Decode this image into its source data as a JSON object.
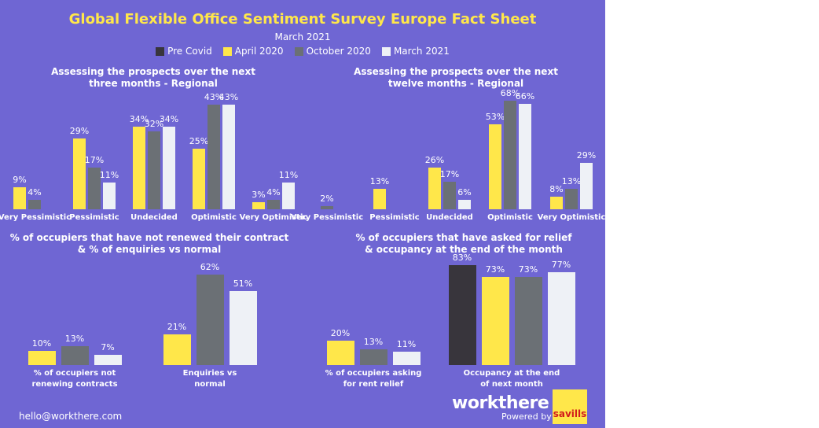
{
  "header": {
    "title": "Global Flexible Office Sentiment Survey Europe Fact Sheet",
    "subtitle": "March 2021"
  },
  "legend": [
    {
      "label": "Pre Covid",
      "color": "#38353c"
    },
    {
      "label": "April 2020",
      "color": "#ffe74a"
    },
    {
      "label": "October 2020",
      "color": "#6b7075"
    },
    {
      "label": "March 2021",
      "color": "#eef1f6"
    }
  ],
  "chart_data": [
    {
      "type": "bar",
      "title": [
        "Assessing the prospects over the next",
        "three months - Regional"
      ],
      "categories": [
        [
          "Very Pessimistic"
        ],
        [
          "Pessimistic"
        ],
        [
          "Undecided"
        ],
        [
          "Optimistic"
        ],
        [
          "Very Optimistic"
        ]
      ],
      "series": [
        {
          "name": "Pre Covid",
          "values": [
            null,
            null,
            null,
            null,
            null
          ]
        },
        {
          "name": "April 2020",
          "values": [
            9,
            29,
            34,
            25,
            3
          ]
        },
        {
          "name": "October 2020",
          "values": [
            4,
            17,
            32,
            43,
            4
          ]
        },
        {
          "name": "March 2021",
          "values": [
            null,
            11,
            34,
            43,
            11
          ]
        }
      ],
      "unit": "%"
    },
    {
      "type": "bar",
      "title": [
        "Assessing the prospects over the next",
        "twelve months - Regional"
      ],
      "categories": [
        [
          "Very Pessimistic"
        ],
        [
          "Pessimistic"
        ],
        [
          "Undecided"
        ],
        [
          "Optimistic"
        ],
        [
          "Very Optimistic"
        ]
      ],
      "series": [
        {
          "name": "Pre Covid",
          "values": [
            null,
            null,
            null,
            null,
            null
          ]
        },
        {
          "name": "April 2020",
          "values": [
            null,
            13,
            26,
            53,
            8
          ]
        },
        {
          "name": "October 2020",
          "values": [
            2,
            null,
            17,
            68,
            13
          ]
        },
        {
          "name": "March 2021",
          "values": [
            null,
            null,
            6,
            66,
            29
          ]
        }
      ],
      "unit": "%"
    },
    {
      "type": "bar",
      "title": [
        "% of occupiers that have not renewed their contract",
        "& % of enquiries vs normal"
      ],
      "categories": [
        [
          "% of occupiers not",
          "renewing contracts"
        ],
        [
          "Enquiries vs",
          "normal"
        ]
      ],
      "series": [
        {
          "name": "Pre Covid",
          "values": [
            null,
            null
          ]
        },
        {
          "name": "April 2020",
          "values": [
            10,
            21
          ]
        },
        {
          "name": "October 2020",
          "values": [
            13,
            62
          ]
        },
        {
          "name": "March 2021",
          "values": [
            7,
            51
          ]
        }
      ],
      "unit": "%"
    },
    {
      "type": "bar",
      "title": [
        "% of occupiers that have asked for relief",
        "& occupancy at the end of the month"
      ],
      "categories": [
        [
          "% of occupiers asking",
          "for rent relief"
        ],
        [
          "Occupancy at the end",
          "of next month"
        ]
      ],
      "series": [
        {
          "name": "Pre Covid",
          "values": [
            null,
            83
          ]
        },
        {
          "name": "April 2020",
          "values": [
            20,
            73
          ]
        },
        {
          "name": "October 2020",
          "values": [
            13,
            73
          ]
        },
        {
          "name": "March 2021",
          "values": [
            11,
            77
          ]
        }
      ],
      "unit": "%"
    }
  ],
  "footer": {
    "email": "hello@workthere.com",
    "brand": "workthere",
    "powered": "Powered by",
    "partner": "savills"
  }
}
